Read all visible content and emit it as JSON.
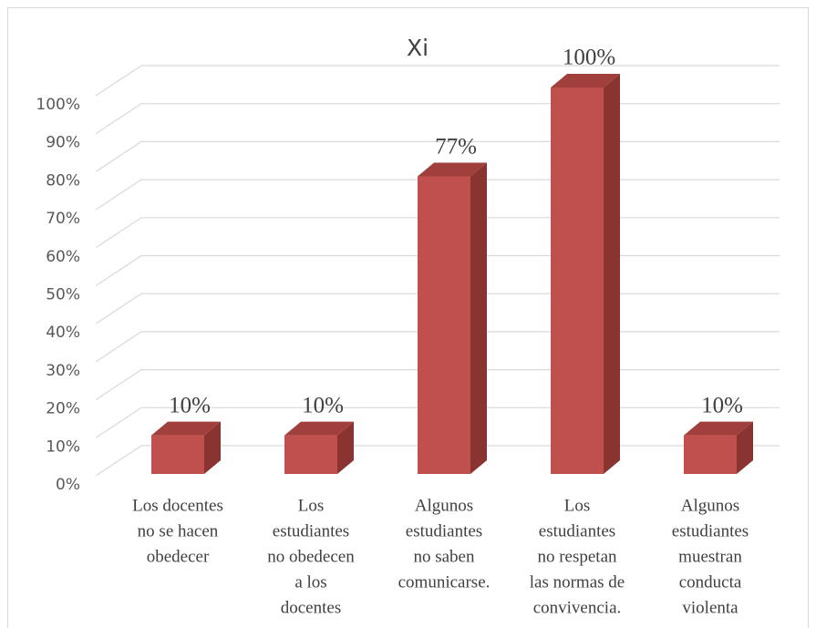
{
  "chart_data": {
    "type": "bar3d",
    "title": "Xi",
    "categories": [
      [
        "Los docentes",
        "no se hacen",
        "obedecer"
      ],
      [
        "Los",
        "estudiantes",
        "no obedecen",
        "a los",
        "docentes"
      ],
      [
        "Algunos",
        "estudiantes",
        "no saben",
        "comunicarse."
      ],
      [
        "Los",
        "estudiantes",
        "no respetan",
        "las normas de",
        "convivencia."
      ],
      [
        "Algunos",
        "estudiantes",
        "muestran",
        "conducta",
        "violenta"
      ]
    ],
    "values": [
      10,
      10,
      77,
      100,
      10
    ],
    "value_labels": [
      "10%",
      "10%",
      "77%",
      "100%",
      "10%"
    ],
    "colors": {
      "front": "#c0504d",
      "side": "#8a3431",
      "top": "#a13f3c"
    },
    "ylim": [
      0,
      100
    ],
    "yticks": [
      {
        "value": 0,
        "label": "0%"
      },
      {
        "value": 10,
        "label": "10%"
      },
      {
        "value": 20,
        "label": "20%"
      },
      {
        "value": 30,
        "label": "30%"
      },
      {
        "value": 40,
        "label": "40%"
      },
      {
        "value": 50,
        "label": "50%"
      },
      {
        "value": 60,
        "label": "60%"
      },
      {
        "value": 70,
        "label": "70%"
      },
      {
        "value": 80,
        "label": "80%"
      },
      {
        "value": 90,
        "label": "90%"
      },
      {
        "value": 100,
        "label": "100%"
      }
    ],
    "grid": true
  }
}
